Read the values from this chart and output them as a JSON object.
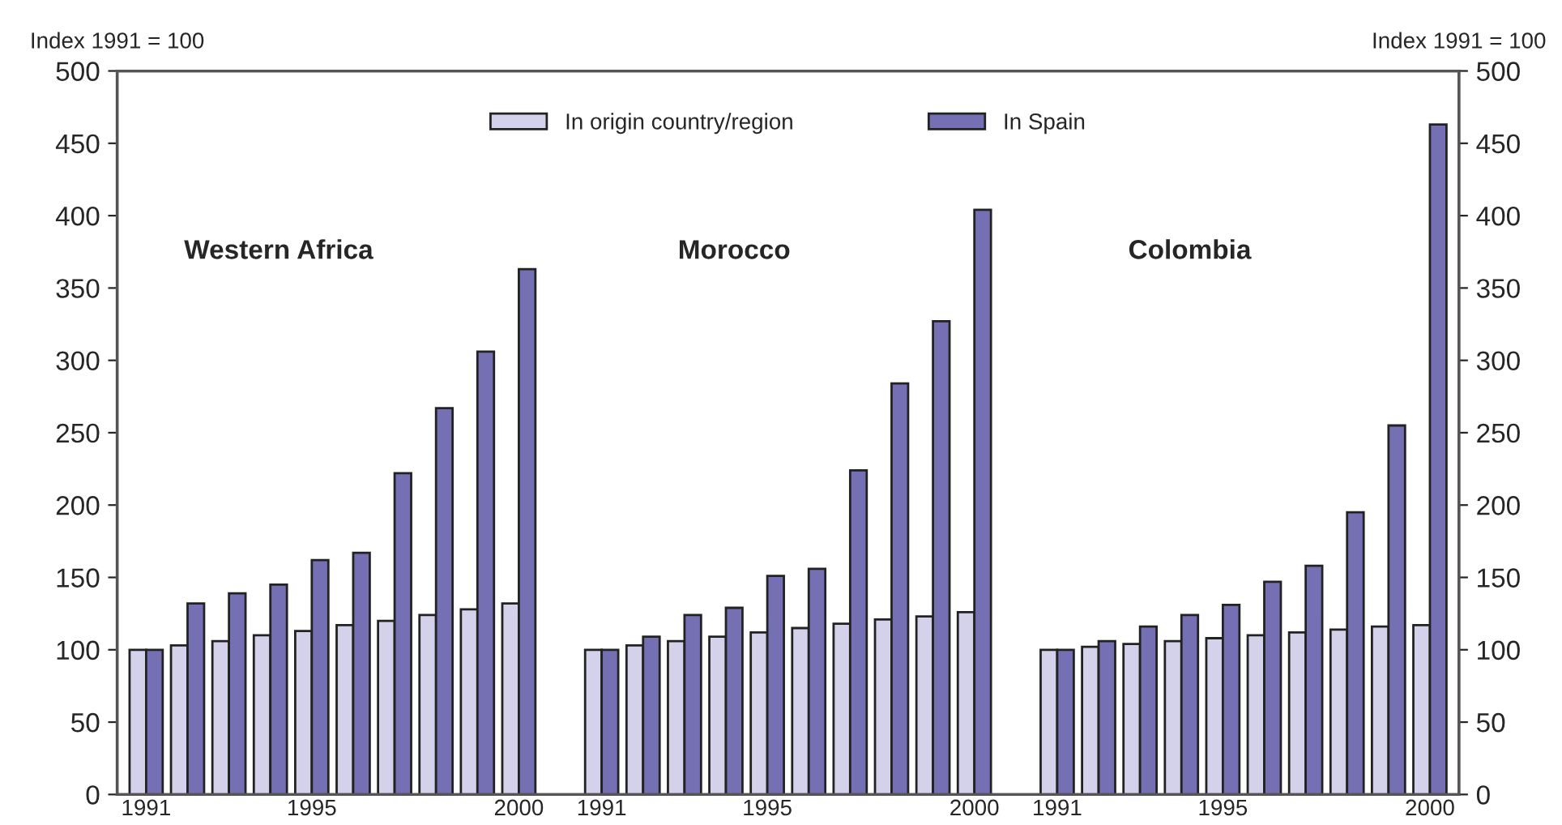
{
  "chart_data": {
    "type": "bar",
    "categories": [
      "1991",
      null,
      null,
      null,
      "1995",
      null,
      null,
      null,
      null,
      "2000",
      null,
      "1991",
      null,
      null,
      null,
      "1995",
      null,
      null,
      null,
      null,
      "2000",
      null,
      "1991",
      null,
      null,
      null,
      "1995",
      null,
      null,
      null,
      null,
      "2000"
    ],
    "series": [
      {
        "name": "In origin country/region",
        "color": "#d4d2ea",
        "values": [
          100,
          103,
          106,
          110,
          113,
          117,
          120,
          124,
          128,
          132,
          null,
          100,
          103,
          106,
          109,
          112,
          115,
          118,
          121,
          123,
          126,
          null,
          100,
          102,
          104,
          106,
          108,
          110,
          112,
          114,
          116,
          117
        ]
      },
      {
        "name": "In Spain",
        "color": "#7570b3",
        "values": [
          100,
          132,
          139,
          145,
          162,
          167,
          222,
          267,
          306,
          363,
          null,
          100,
          109,
          124,
          129,
          151,
          156,
          224,
          284,
          327,
          404,
          null,
          100,
          106,
          116,
          124,
          131,
          147,
          158,
          195,
          255,
          463
        ]
      }
    ],
    "ylabel": "Index 1991 = 100",
    "y2label": "Index 1991 = 100",
    "ylim": [
      0,
      500
    ],
    "yticks": [
      0,
      50,
      100,
      150,
      200,
      250,
      300,
      350,
      400,
      450,
      500
    ],
    "y2lim": [
      0,
      500
    ],
    "y2ticks": [
      0,
      50,
      100,
      150,
      200,
      250,
      300,
      350,
      400,
      450,
      500
    ],
    "annotations": [
      "Western Africa",
      "Morocco",
      "Colombia"
    ],
    "legend": "top",
    "grid": false
  }
}
